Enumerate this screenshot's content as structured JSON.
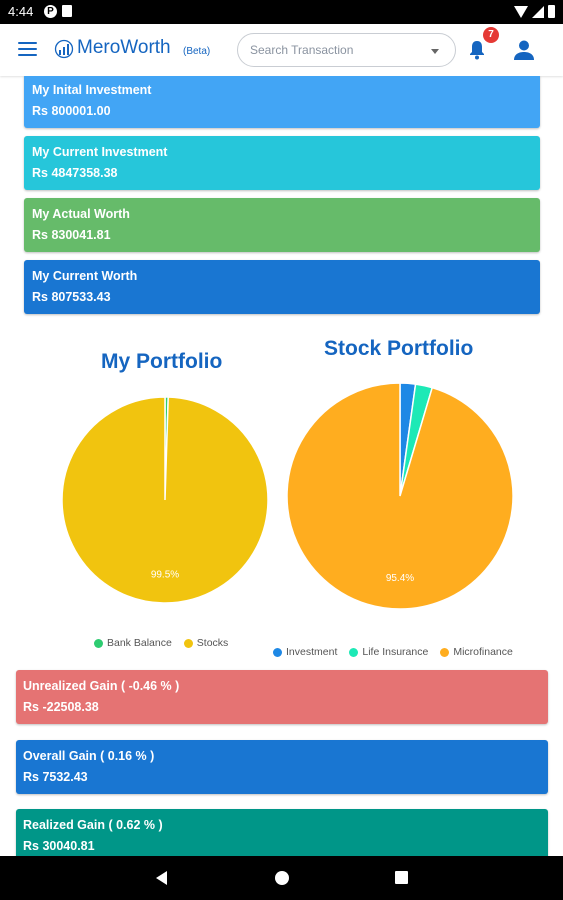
{
  "status_bar": {
    "time": "4:44"
  },
  "app_bar": {
    "brand": "MeroWorth",
    "beta": "(Beta)",
    "search_placeholder": "Search Transaction",
    "notification_count": "7"
  },
  "summary_cards": [
    {
      "label": "My Inital Investment",
      "value": "Rs 800001.00",
      "color": "#42a5f5"
    },
    {
      "label": "My Current Investment",
      "value": "Rs 4847358.38",
      "color": "#26c6da"
    },
    {
      "label": "My Actual Worth",
      "value": "Rs 830041.81",
      "color": "#66bb6a"
    },
    {
      "label": "My Current Worth",
      "value": "Rs 807533.43",
      "color": "#1976d2"
    }
  ],
  "chart_data": [
    {
      "type": "pie",
      "title": "My Portfolio",
      "categories": [
        "Bank Balance",
        "Stocks"
      ],
      "values": [
        0.5,
        99.5
      ],
      "colors": [
        "#2ecc71",
        "#f1c40f"
      ],
      "data_labels": [
        "",
        "99.5%"
      ],
      "legend": "bottom"
    },
    {
      "type": "pie",
      "title": "Stock Portfolio",
      "categories": [
        "Investment",
        "Life Insurance",
        "Microfinance"
      ],
      "values": [
        2.2,
        2.4,
        95.4
      ],
      "colors": [
        "#1e88e5",
        "#1de9b6",
        "#ffad1f"
      ],
      "data_labels": [
        "",
        "",
        "95.4%"
      ],
      "legend": "bottom"
    }
  ],
  "gain_cards": [
    {
      "label": "Unrealized Gain ( -0.46 % )",
      "value": "Rs -22508.38",
      "color": "#e57373"
    },
    {
      "label": "Overall Gain ( 0.16 % )",
      "value": "Rs 7532.43",
      "color": "#1976d2"
    },
    {
      "label": "Realized Gain ( 0.62 % )",
      "value": "Rs 30040.81",
      "color": "#009688"
    }
  ]
}
